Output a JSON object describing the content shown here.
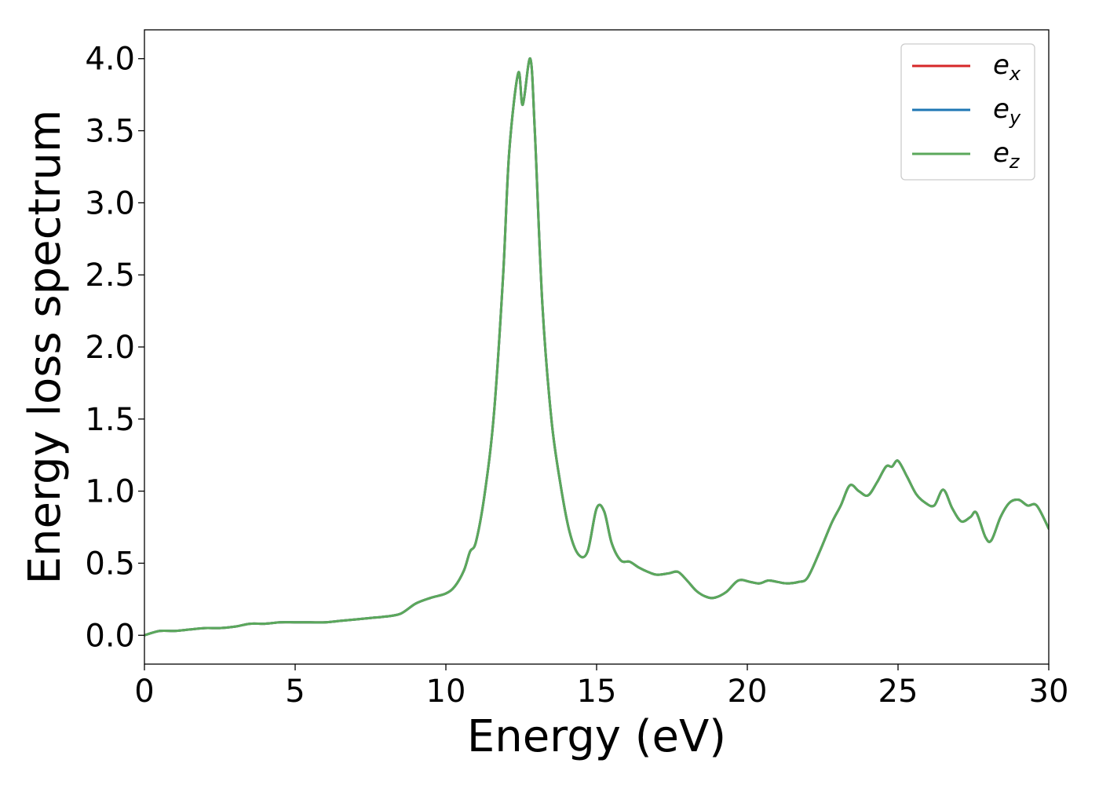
{
  "chart_data": {
    "type": "line",
    "title": "",
    "xlabel": "Energy (eV)",
    "ylabel": "Energy loss spectrum",
    "xlim": [
      0,
      30
    ],
    "ylim": [
      -0.2,
      4.2
    ],
    "xticks": [
      0,
      5,
      10,
      15,
      20,
      25,
      30
    ],
    "xtick_labels": [
      "0",
      "5",
      "10",
      "15",
      "20",
      "25",
      "30"
    ],
    "yticks": [
      0.0,
      0.5,
      1.0,
      1.5,
      2.0,
      2.5,
      3.0,
      3.5,
      4.0
    ],
    "ytick_labels": [
      "0.0",
      "0.5",
      "1.0",
      "1.5",
      "2.0",
      "2.5",
      "3.0",
      "3.5",
      "4.0"
    ],
    "grid": false,
    "legend_position": "top-right",
    "series": [
      {
        "name": "e_x",
        "label_base": "e",
        "label_sub": "x",
        "color": "#d62728",
        "x": [
          0,
          0.5,
          1.0,
          1.5,
          2.0,
          2.5,
          3.0,
          3.5,
          4.0,
          4.5,
          5.0,
          5.5,
          6.0,
          6.5,
          7.0,
          7.5,
          8.0,
          8.5,
          9.0,
          9.5,
          10.0,
          10.3,
          10.6,
          10.8,
          11.0,
          11.3,
          11.6,
          11.9,
          12.1,
          12.4,
          12.55,
          12.8,
          12.95,
          13.2,
          13.5,
          13.8,
          14.1,
          14.4,
          14.7,
          15.0,
          15.25,
          15.5,
          15.8,
          16.1,
          16.4,
          16.7,
          17.0,
          17.4,
          17.7,
          18.0,
          18.3,
          18.6,
          18.9,
          19.3,
          19.7,
          20.1,
          20.4,
          20.7,
          21.0,
          21.3,
          21.7,
          22.0,
          22.4,
          22.8,
          23.1,
          23.4,
          23.7,
          24.0,
          24.3,
          24.6,
          24.8,
          25.0,
          25.3,
          25.6,
          25.9,
          26.2,
          26.5,
          26.8,
          27.1,
          27.4,
          27.6,
          27.9,
          28.1,
          28.4,
          28.7,
          29.0,
          29.3,
          29.6,
          30.0
        ],
        "y": [
          0.0,
          0.03,
          0.03,
          0.04,
          0.05,
          0.05,
          0.06,
          0.08,
          0.08,
          0.09,
          0.09,
          0.09,
          0.09,
          0.1,
          0.11,
          0.12,
          0.13,
          0.15,
          0.22,
          0.26,
          0.29,
          0.34,
          0.45,
          0.58,
          0.65,
          1.0,
          1.55,
          2.5,
          3.35,
          3.9,
          3.68,
          4.0,
          3.5,
          2.3,
          1.5,
          1.05,
          0.72,
          0.56,
          0.58,
          0.88,
          0.86,
          0.64,
          0.52,
          0.51,
          0.47,
          0.44,
          0.42,
          0.43,
          0.44,
          0.38,
          0.31,
          0.27,
          0.26,
          0.3,
          0.38,
          0.37,
          0.36,
          0.38,
          0.37,
          0.36,
          0.37,
          0.4,
          0.58,
          0.78,
          0.9,
          1.04,
          1.0,
          0.97,
          1.06,
          1.17,
          1.17,
          1.21,
          1.1,
          0.98,
          0.92,
          0.9,
          1.01,
          0.88,
          0.79,
          0.82,
          0.85,
          0.68,
          0.66,
          0.82,
          0.92,
          0.94,
          0.9,
          0.9,
          0.74
        ]
      },
      {
        "name": "e_y",
        "label_base": "e",
        "label_sub": "y",
        "color": "#1f77b4",
        "x": [
          0,
          0.5,
          1.0,
          1.5,
          2.0,
          2.5,
          3.0,
          3.5,
          4.0,
          4.5,
          5.0,
          5.5,
          6.0,
          6.5,
          7.0,
          7.5,
          8.0,
          8.5,
          9.0,
          9.5,
          10.0,
          10.3,
          10.6,
          10.8,
          11.0,
          11.3,
          11.6,
          11.9,
          12.1,
          12.4,
          12.55,
          12.8,
          12.95,
          13.2,
          13.5,
          13.8,
          14.1,
          14.4,
          14.7,
          15.0,
          15.25,
          15.5,
          15.8,
          16.1,
          16.4,
          16.7,
          17.0,
          17.4,
          17.7,
          18.0,
          18.3,
          18.6,
          18.9,
          19.3,
          19.7,
          20.1,
          20.4,
          20.7,
          21.0,
          21.3,
          21.7,
          22.0,
          22.4,
          22.8,
          23.1,
          23.4,
          23.7,
          24.0,
          24.3,
          24.6,
          24.8,
          25.0,
          25.3,
          25.6,
          25.9,
          26.2,
          26.5,
          26.8,
          27.1,
          27.4,
          27.6,
          27.9,
          28.1,
          28.4,
          28.7,
          29.0,
          29.3,
          29.6,
          30.0
        ],
        "y": [
          0.0,
          0.03,
          0.03,
          0.04,
          0.05,
          0.05,
          0.06,
          0.08,
          0.08,
          0.09,
          0.09,
          0.09,
          0.09,
          0.1,
          0.11,
          0.12,
          0.13,
          0.15,
          0.22,
          0.26,
          0.29,
          0.34,
          0.45,
          0.58,
          0.65,
          1.0,
          1.55,
          2.5,
          3.35,
          3.9,
          3.68,
          4.0,
          3.5,
          2.3,
          1.5,
          1.05,
          0.72,
          0.56,
          0.58,
          0.88,
          0.86,
          0.64,
          0.52,
          0.51,
          0.47,
          0.44,
          0.42,
          0.43,
          0.44,
          0.38,
          0.31,
          0.27,
          0.26,
          0.3,
          0.38,
          0.37,
          0.36,
          0.38,
          0.37,
          0.36,
          0.37,
          0.4,
          0.58,
          0.78,
          0.9,
          1.04,
          1.0,
          0.97,
          1.06,
          1.17,
          1.17,
          1.21,
          1.1,
          0.98,
          0.92,
          0.9,
          1.01,
          0.88,
          0.79,
          0.82,
          0.85,
          0.68,
          0.66,
          0.82,
          0.92,
          0.94,
          0.9,
          0.9,
          0.74
        ]
      },
      {
        "name": "e_z",
        "label_base": "e",
        "label_sub": "z",
        "color": "#5ba85b",
        "x": [
          0,
          0.5,
          1.0,
          1.5,
          2.0,
          2.5,
          3.0,
          3.5,
          4.0,
          4.5,
          5.0,
          5.5,
          6.0,
          6.5,
          7.0,
          7.5,
          8.0,
          8.5,
          9.0,
          9.5,
          10.0,
          10.3,
          10.6,
          10.8,
          11.0,
          11.3,
          11.6,
          11.9,
          12.1,
          12.4,
          12.55,
          12.8,
          12.95,
          13.2,
          13.5,
          13.8,
          14.1,
          14.4,
          14.7,
          15.0,
          15.25,
          15.5,
          15.8,
          16.1,
          16.4,
          16.7,
          17.0,
          17.4,
          17.7,
          18.0,
          18.3,
          18.6,
          18.9,
          19.3,
          19.7,
          20.1,
          20.4,
          20.7,
          21.0,
          21.3,
          21.7,
          22.0,
          22.4,
          22.8,
          23.1,
          23.4,
          23.7,
          24.0,
          24.3,
          24.6,
          24.8,
          25.0,
          25.3,
          25.6,
          25.9,
          26.2,
          26.5,
          26.8,
          27.1,
          27.4,
          27.6,
          27.9,
          28.1,
          28.4,
          28.7,
          29.0,
          29.3,
          29.6,
          30.0
        ],
        "y": [
          0.0,
          0.03,
          0.03,
          0.04,
          0.05,
          0.05,
          0.06,
          0.08,
          0.08,
          0.09,
          0.09,
          0.09,
          0.09,
          0.1,
          0.11,
          0.12,
          0.13,
          0.15,
          0.22,
          0.26,
          0.29,
          0.34,
          0.45,
          0.58,
          0.65,
          1.0,
          1.55,
          2.5,
          3.35,
          3.9,
          3.68,
          4.0,
          3.5,
          2.3,
          1.5,
          1.05,
          0.72,
          0.56,
          0.58,
          0.88,
          0.86,
          0.64,
          0.52,
          0.51,
          0.47,
          0.44,
          0.42,
          0.43,
          0.44,
          0.38,
          0.31,
          0.27,
          0.26,
          0.3,
          0.38,
          0.37,
          0.36,
          0.38,
          0.37,
          0.36,
          0.37,
          0.4,
          0.58,
          0.78,
          0.9,
          1.04,
          1.0,
          0.97,
          1.06,
          1.17,
          1.17,
          1.21,
          1.1,
          0.98,
          0.92,
          0.9,
          1.01,
          0.88,
          0.79,
          0.82,
          0.85,
          0.68,
          0.66,
          0.82,
          0.92,
          0.94,
          0.9,
          0.9,
          0.74
        ]
      }
    ]
  }
}
